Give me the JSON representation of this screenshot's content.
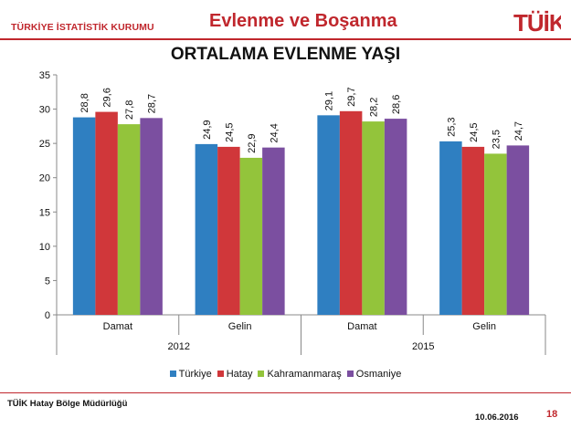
{
  "header": {
    "org_name": "TÜRKİYE İSTATİSTİK KURUMU",
    "slide_title": "Evlenme ve Boşanma",
    "logo_text": "TÜİK"
  },
  "colors": {
    "brand_red": "#c0272d",
    "series": [
      "#2f7fc1",
      "#d0373a",
      "#93c43b",
      "#7b4fa0"
    ]
  },
  "chart_data": {
    "type": "bar",
    "title": "ORTALAMA EVLENME YAŞI",
    "ylim": [
      0,
      35
    ],
    "yticks": [
      0,
      5,
      10,
      15,
      20,
      25,
      30,
      35
    ],
    "grid": false,
    "legend_position": "bottom",
    "groups": [
      {
        "name": "2012",
        "categories": [
          "Damat",
          "Gelin"
        ]
      },
      {
        "name": "2015",
        "categories": [
          "Damat",
          "Gelin"
        ]
      }
    ],
    "series": [
      {
        "name": "Türkiye",
        "values": [
          28.8,
          24.9,
          29.1,
          25.3
        ],
        "labels": [
          "28,8",
          "24,9",
          "29,1",
          "25,3"
        ]
      },
      {
        "name": "Hatay",
        "values": [
          29.6,
          24.5,
          29.7,
          24.5
        ],
        "labels": [
          "29,6",
          "24,5",
          "29,7",
          "24,5"
        ]
      },
      {
        "name": "Kahramanmaraş",
        "values": [
          27.8,
          22.9,
          28.2,
          23.5
        ],
        "labels": [
          "27,8",
          "22,9",
          "28,2",
          "23,5"
        ]
      },
      {
        "name": "Osmaniye",
        "values": [
          28.7,
          24.4,
          28.6,
          24.7
        ],
        "labels": [
          "28,7",
          "24,4",
          "28,6",
          "24,7"
        ]
      }
    ]
  },
  "footer": {
    "office": "TÜİK Hatay Bölge Müdürlüğü",
    "date": "10.06.2016",
    "page_number": "18"
  }
}
